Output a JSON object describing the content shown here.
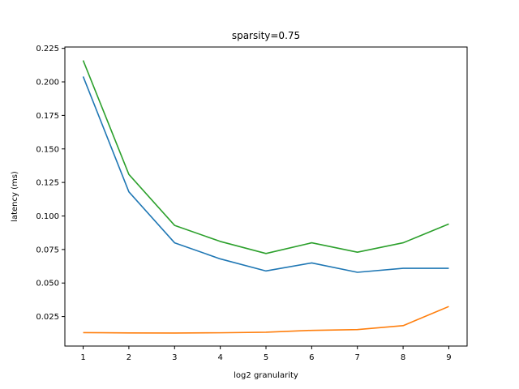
{
  "chart_data": {
    "type": "line",
    "title": "sparsity=0.75",
    "xlabel": "log2 granularity",
    "ylabel": "latency (ms)",
    "x": [
      1,
      2,
      3,
      4,
      5,
      6,
      7,
      8,
      9
    ],
    "xlim": [
      0.6,
      9.4
    ],
    "ylim": [
      0.003,
      0.226
    ],
    "xticks": [
      1,
      2,
      3,
      4,
      5,
      6,
      7,
      8,
      9
    ],
    "yticks": [
      0.025,
      0.05,
      0.075,
      0.1,
      0.125,
      0.15,
      0.175,
      0.2,
      0.225
    ],
    "ytick_labels": [
      "0.025",
      "0.050",
      "0.075",
      "0.100",
      "0.125",
      "0.150",
      "0.175",
      "0.200",
      "0.225"
    ],
    "grid": false,
    "series": [
      {
        "color": "#1f77b4",
        "values": [
          0.204,
          0.118,
          0.08,
          0.068,
          0.059,
          0.065,
          0.058,
          0.061,
          0.061
        ]
      },
      {
        "color": "#ff7f0e",
        "values": [
          0.013,
          0.0128,
          0.0127,
          0.0129,
          0.0133,
          0.0147,
          0.0153,
          0.0182,
          0.0325
        ]
      },
      {
        "color": "#2ca02c",
        "values": [
          0.216,
          0.131,
          0.093,
          0.081,
          0.072,
          0.08,
          0.073,
          0.08,
          0.094
        ]
      }
    ]
  }
}
